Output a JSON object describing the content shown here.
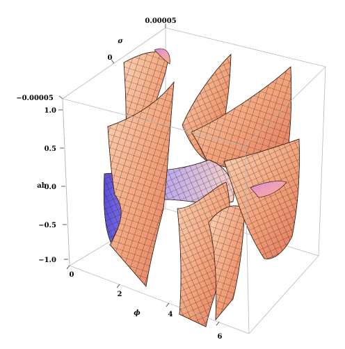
{
  "chart_data": {
    "type": "surface3d",
    "title": "",
    "axes": {
      "phi": {
        "label": "ϕ",
        "ticks": [
          0,
          2,
          4,
          6
        ]
      },
      "ab": {
        "label": "ab",
        "ticks": [
          1.0,
          0.5,
          0.0,
          -0.5,
          -1.0
        ],
        "tick_labels": [
          "1.0",
          "0.5",
          "0.0",
          "−0.5",
          "−1.0"
        ]
      },
      "sigma": {
        "label": "σ",
        "ticks": [
          5e-05,
          0,
          -5e-05
        ],
        "tick_labels": [
          "0.00005",
          "0",
          "−0.00005"
        ]
      }
    },
    "colors": {
      "surface_warm": "#f2a27a",
      "surface_light": "#fbd2b6",
      "surface_cool": "#6d5fe0",
      "surface_pink": "#e88aa8",
      "mesh": "#2b1a14",
      "box": "#b8b8b8"
    }
  }
}
